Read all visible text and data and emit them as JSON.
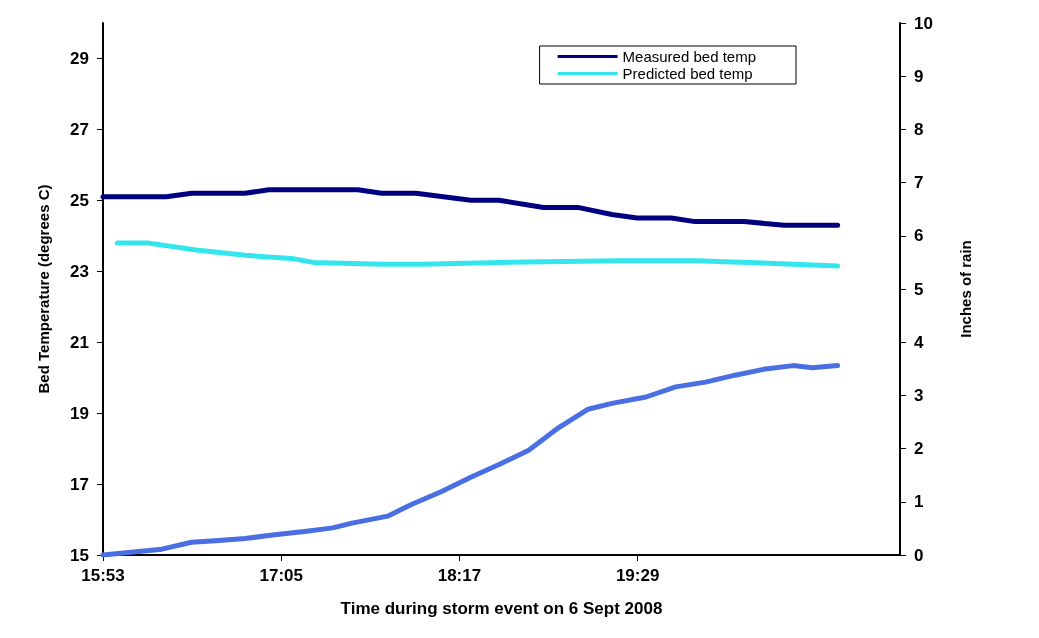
{
  "chart_data": {
    "type": "line",
    "xlabel": "Time during storm event on 6 Sept 2008",
    "ylabel": "Bed Temperature (degrees C)",
    "y2label": "Inches of rain",
    "xlim": [
      15.8833,
      21.25
    ],
    "xticks": [
      {
        "value": 15.8833,
        "label": "15:53"
      },
      {
        "value": 17.0833,
        "label": "17:05"
      },
      {
        "value": 18.2833,
        "label": "18:17"
      },
      {
        "value": 19.4833,
        "label": "19:29"
      }
    ],
    "ylim": [
      15,
      30
    ],
    "yticks": [
      15,
      17,
      19,
      21,
      23,
      25,
      27,
      29
    ],
    "y2lim": [
      0,
      10
    ],
    "y2ticks": [
      0,
      1,
      2,
      3,
      4,
      5,
      6,
      7,
      8,
      9,
      10
    ],
    "grid": false,
    "legend": "top right",
    "marker": "none",
    "line_style": "solid",
    "series": [
      {
        "name": "Measured bed temp",
        "color": "#000080",
        "x": [
          15.8833,
          16.31,
          16.48,
          16.84,
          17.0,
          17.6,
          17.76,
          17.99,
          18.36,
          18.55,
          18.85,
          19.08,
          19.31,
          19.48,
          19.71,
          19.87,
          20.2,
          20.47,
          20.83
        ],
        "values": [
          25.1,
          25.1,
          25.2,
          25.2,
          25.3,
          25.3,
          25.2,
          25.2,
          25.0,
          25.0,
          24.8,
          24.8,
          24.6,
          24.5,
          24.5,
          24.4,
          24.4,
          24.3,
          24.3
        ]
      },
      {
        "name": "Predicted bed temp",
        "color": "#33e6ee",
        "x": [
          15.98,
          16.18,
          16.51,
          16.84,
          17.17,
          17.3,
          17.76,
          18.03,
          18.55,
          19.35,
          19.87,
          20.53,
          20.83
        ],
        "values": [
          23.8,
          23.8,
          23.6,
          23.45,
          23.35,
          23.25,
          23.2,
          23.2,
          23.25,
          23.3,
          23.3,
          23.2,
          23.15
        ]
      },
      {
        "color": "#4a6fe3",
        "axis": "y2",
        "x": [
          15.8833,
          16.28,
          16.48,
          16.64,
          16.84,
          17.04,
          17.24,
          17.43,
          17.56,
          17.8,
          17.96,
          18.16,
          18.36,
          18.55,
          18.75,
          18.95,
          19.15,
          19.31,
          19.54,
          19.74,
          19.94,
          20.14,
          20.33,
          20.53,
          20.66,
          20.83
        ],
        "values": [
          0,
          0.11,
          0.24,
          0.27,
          0.31,
          0.38,
          0.44,
          0.51,
          0.6,
          0.73,
          0.95,
          1.19,
          1.46,
          1.7,
          1.97,
          2.39,
          2.74,
          2.85,
          2.97,
          3.16,
          3.25,
          3.38,
          3.49,
          3.56,
          3.52,
          3.56
        ]
      }
    ]
  }
}
